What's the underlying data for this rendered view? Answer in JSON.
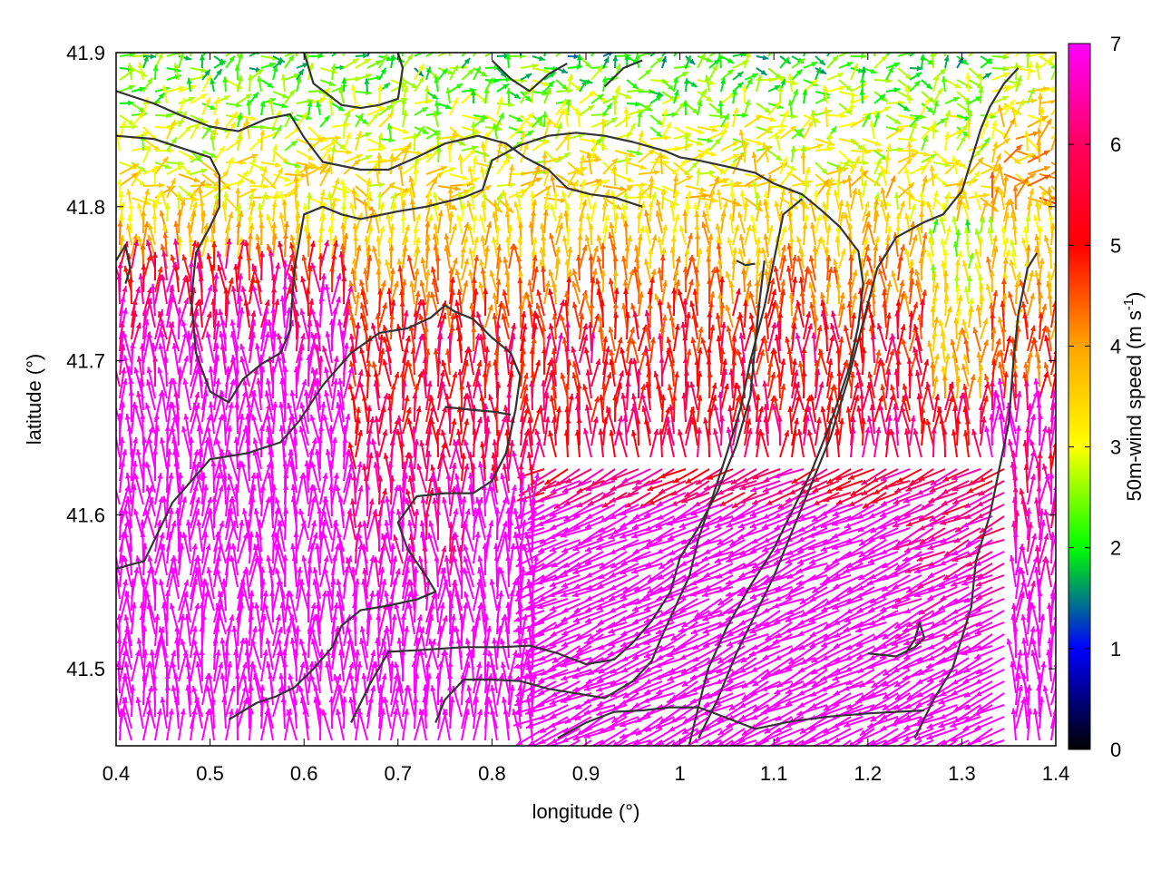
{
  "chart_data": {
    "type": "vector-field",
    "title": "",
    "xlabel": "longitude (°)",
    "ylabel": "latitude (°)",
    "xlim": [
      0.4,
      1.4
    ],
    "ylim": [
      41.45,
      41.9
    ],
    "xticks": [
      "0.4",
      "0.5",
      "0.6",
      "0.7",
      "0.8",
      "0.9",
      "1",
      "1.1",
      "1.2",
      "1.3",
      "1.4"
    ],
    "yticks": [
      "41.5",
      "41.6",
      "41.7",
      "41.8",
      "41.9"
    ],
    "colorbar": {
      "label_main": "50m-wind speed (m s",
      "label_sup": "-1",
      "label_end": ")",
      "range": [
        0,
        7
      ],
      "ticks": [
        "0",
        "1",
        "2",
        "3",
        "4",
        "5",
        "6",
        "7"
      ],
      "palette": [
        "#000000",
        "#0000ff",
        "#00ff00",
        "#ffff00",
        "#ffa500",
        "#ff0000",
        "#ff00ff"
      ]
    },
    "contour_color": "#333333",
    "contours": [
      [
        [
          0.4,
          41.875
        ],
        [
          0.44,
          41.867
        ],
        [
          0.47,
          41.859
        ],
        [
          0.5,
          41.852
        ],
        [
          0.53,
          41.849
        ],
        [
          0.56,
          41.857
        ],
        [
          0.585,
          41.86
        ],
        [
          0.6,
          41.845
        ],
        [
          0.62,
          41.829
        ],
        [
          0.66,
          41.824
        ],
        [
          0.69,
          41.824
        ],
        [
          0.72,
          41.832
        ],
        [
          0.75,
          41.841
        ],
        [
          0.785,
          41.846
        ],
        [
          0.815,
          41.841
        ],
        [
          0.835,
          41.832
        ],
        [
          0.86,
          41.824
        ],
        [
          0.88,
          41.812
        ],
        [
          0.905,
          41.808
        ],
        [
          0.93,
          41.806
        ],
        [
          0.96,
          41.8
        ]
      ],
      [
        [
          0.4,
          41.846
        ],
        [
          0.44,
          41.844
        ],
        [
          0.47,
          41.838
        ],
        [
          0.5,
          41.832
        ],
        [
          0.51,
          41.82
        ],
        [
          0.51,
          41.8
        ],
        [
          0.5,
          41.787
        ],
        [
          0.485,
          41.77
        ],
        [
          0.48,
          41.74
        ],
        [
          0.485,
          41.705
        ],
        [
          0.5,
          41.68
        ],
        [
          0.52,
          41.673
        ],
        [
          0.535,
          41.688
        ],
        [
          0.555,
          41.698
        ],
        [
          0.575,
          41.705
        ],
        [
          0.585,
          41.72
        ],
        [
          0.59,
          41.76
        ],
        [
          0.6,
          41.795
        ],
        [
          0.62,
          41.8
        ],
        [
          0.64,
          41.795
        ],
        [
          0.66,
          41.792
        ],
        [
          0.7,
          41.797
        ],
        [
          0.73,
          41.8
        ],
        [
          0.77,
          41.806
        ],
        [
          0.79,
          41.811
        ],
        [
          0.8,
          41.83
        ],
        [
          0.83,
          41.84
        ],
        [
          0.86,
          41.846
        ],
        [
          0.89,
          41.848
        ],
        [
          0.92,
          41.846
        ],
        [
          0.95,
          41.842
        ],
        [
          0.985,
          41.836
        ],
        [
          1.0,
          41.832
        ],
        [
          1.02,
          41.83
        ],
        [
          1.05,
          41.826
        ],
        [
          1.08,
          41.822
        ],
        [
          1.1,
          41.815
        ],
        [
          1.13,
          41.808
        ],
        [
          1.15,
          41.798
        ],
        [
          1.17,
          41.787
        ],
        [
          1.19,
          41.771
        ],
        [
          1.195,
          41.75
        ],
        [
          1.19,
          41.723
        ],
        [
          1.18,
          41.695
        ],
        [
          1.16,
          41.659
        ],
        [
          1.14,
          41.628
        ],
        [
          1.12,
          41.603
        ],
        [
          1.1,
          41.578
        ],
        [
          1.075,
          41.554
        ],
        [
          1.05,
          41.527
        ],
        [
          1.03,
          41.5
        ],
        [
          1.02,
          41.476
        ],
        [
          1.01,
          41.451
        ]
      ],
      [
        [
          0.4,
          41.565
        ],
        [
          0.43,
          41.57
        ],
        [
          0.46,
          41.608
        ],
        [
          0.5,
          41.636
        ],
        [
          0.54,
          41.64
        ],
        [
          0.575,
          41.647
        ],
        [
          0.595,
          41.661
        ],
        [
          0.62,
          41.684
        ],
        [
          0.65,
          41.705
        ],
        [
          0.68,
          41.718
        ],
        [
          0.71,
          41.721
        ],
        [
          0.735,
          41.728
        ],
        [
          0.75,
          41.736
        ],
        [
          0.76,
          41.732
        ],
        [
          0.78,
          41.727
        ],
        [
          0.8,
          41.715
        ],
        [
          0.82,
          41.705
        ],
        [
          0.83,
          41.69
        ],
        [
          0.825,
          41.668
        ],
        [
          0.815,
          41.64
        ],
        [
          0.8,
          41.622
        ],
        [
          0.78,
          41.614
        ],
        [
          0.75,
          41.614
        ],
        [
          0.72,
          41.612
        ],
        [
          0.7,
          41.595
        ],
        [
          0.71,
          41.578
        ],
        [
          0.73,
          41.56
        ],
        [
          0.74,
          41.55
        ],
        [
          0.72,
          41.545
        ],
        [
          0.69,
          41.541
        ],
        [
          0.66,
          41.538
        ],
        [
          0.64,
          41.528
        ],
        [
          0.63,
          41.514
        ],
        [
          0.61,
          41.5
        ],
        [
          0.59,
          41.488
        ],
        [
          0.57,
          41.482
        ],
        [
          0.55,
          41.478
        ],
        [
          0.52,
          41.467
        ]
      ],
      [
        [
          0.65,
          41.465
        ],
        [
          0.67,
          41.49
        ],
        [
          0.69,
          41.511
        ],
        [
          0.72,
          41.512
        ],
        [
          0.77,
          41.514
        ],
        [
          0.81,
          41.514
        ],
        [
          0.84,
          41.515
        ],
        [
          0.87,
          41.51
        ],
        [
          0.9,
          41.503
        ],
        [
          0.93,
          41.506
        ],
        [
          0.95,
          41.517
        ],
        [
          0.97,
          41.531
        ],
        [
          0.99,
          41.55
        ],
        [
          1.0,
          41.572
        ],
        [
          1.02,
          41.592
        ],
        [
          1.04,
          41.615
        ],
        [
          1.06,
          41.645
        ],
        [
          1.075,
          41.677
        ],
        [
          1.08,
          41.71
        ],
        [
          1.085,
          41.74
        ],
        [
          1.09,
          41.765
        ]
      ],
      [
        [
          0.74,
          41.465
        ],
        [
          0.75,
          41.48
        ],
        [
          0.77,
          41.493
        ],
        [
          0.8,
          41.493
        ],
        [
          0.83,
          41.492
        ],
        [
          0.86,
          41.487
        ],
        [
          0.89,
          41.484
        ],
        [
          0.92,
          41.481
        ],
        [
          0.95,
          41.492
        ],
        [
          0.97,
          41.505
        ],
        [
          0.98,
          41.52
        ],
        [
          0.995,
          41.54
        ],
        [
          1.01,
          41.56
        ],
        [
          1.02,
          41.585
        ],
        [
          1.035,
          41.612
        ],
        [
          1.05,
          41.64
        ],
        [
          1.065,
          41.67
        ],
        [
          1.075,
          41.7
        ],
        [
          1.09,
          41.735
        ],
        [
          1.1,
          41.765
        ],
        [
          1.11,
          41.795
        ],
        [
          1.13,
          41.805
        ]
      ],
      [
        [
          0.87,
          41.455
        ],
        [
          0.9,
          41.465
        ],
        [
          0.93,
          41.472
        ],
        [
          0.96,
          41.473
        ],
        [
          0.99,
          41.475
        ],
        [
          1.02,
          41.475
        ],
        [
          1.05,
          41.468
        ],
        [
          1.08,
          41.461
        ],
        [
          1.12,
          41.466
        ],
        [
          1.16,
          41.469
        ],
        [
          1.2,
          41.471
        ],
        [
          1.23,
          41.472
        ],
        [
          1.26,
          41.473
        ]
      ],
      [
        [
          1.02,
          41.455
        ],
        [
          1.04,
          41.48
        ],
        [
          1.06,
          41.51
        ],
        [
          1.08,
          41.535
        ],
        [
          1.1,
          41.56
        ],
        [
          1.12,
          41.59
        ],
        [
          1.14,
          41.62
        ],
        [
          1.16,
          41.65
        ],
        [
          1.18,
          41.69
        ],
        [
          1.195,
          41.725
        ],
        [
          1.21,
          41.76
        ],
        [
          1.23,
          41.78
        ],
        [
          1.26,
          41.79
        ],
        [
          1.28,
          41.795
        ],
        [
          1.3,
          41.81
        ],
        [
          1.31,
          41.83
        ],
        [
          1.32,
          41.85
        ],
        [
          1.33,
          41.865
        ],
        [
          1.345,
          41.88
        ],
        [
          1.36,
          41.89
        ]
      ],
      [
        [
          1.25,
          41.455
        ],
        [
          1.27,
          41.48
        ],
        [
          1.29,
          41.5
        ],
        [
          1.3,
          41.52
        ],
        [
          1.31,
          41.54
        ],
        [
          1.315,
          41.57
        ],
        [
          1.33,
          41.6
        ],
        [
          1.34,
          41.63
        ],
        [
          1.35,
          41.66
        ],
        [
          1.355,
          41.7
        ],
        [
          1.36,
          41.73
        ],
        [
          1.37,
          41.76
        ],
        [
          1.38,
          41.77
        ]
      ],
      [
        [
          1.2,
          41.51
        ],
        [
          1.23,
          41.508
        ],
        [
          1.25,
          41.514
        ],
        [
          1.26,
          41.52
        ],
        [
          1.255,
          41.53
        ],
        [
          1.25,
          41.519
        ],
        [
          1.24,
          41.51
        ]
      ],
      [
        [
          0.75,
          41.67
        ],
        [
          0.78,
          41.668
        ],
        [
          0.8,
          41.667
        ],
        [
          0.82,
          41.665
        ]
      ],
      [
        [
          0.6,
          41.9
        ],
        [
          0.61,
          41.88
        ],
        [
          0.625,
          41.873
        ],
        [
          0.64,
          41.866
        ],
        [
          0.66,
          41.864
        ],
        [
          0.68,
          41.866
        ],
        [
          0.7,
          41.87
        ],
        [
          0.705,
          41.89
        ],
        [
          0.7,
          41.9
        ]
      ],
      [
        [
          0.4,
          41.765
        ],
        [
          0.41,
          41.775
        ],
        [
          0.415,
          41.76
        ],
        [
          0.41,
          41.75
        ]
      ],
      [
        [
          0.8,
          41.895
        ],
        [
          0.82,
          41.883
        ],
        [
          0.84,
          41.875
        ],
        [
          0.86,
          41.886
        ],
        [
          0.88,
          41.893
        ]
      ],
      [
        [
          0.92,
          41.878
        ],
        [
          0.94,
          41.89
        ],
        [
          0.96,
          41.895
        ]
      ],
      [
        [
          1.06,
          41.765
        ],
        [
          1.07,
          41.762
        ],
        [
          1.08,
          41.763
        ]
      ]
    ]
  }
}
